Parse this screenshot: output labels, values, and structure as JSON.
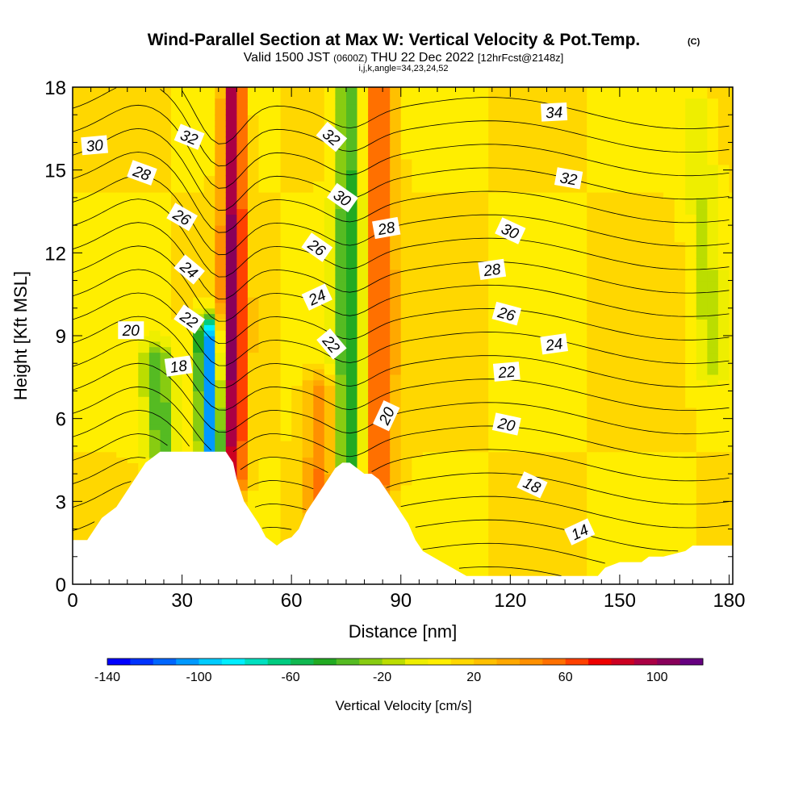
{
  "chart_data": {
    "type": "heatmap",
    "title": "Wind-Parallel Section at Max W: Vertical Velocity & Pot.Temp.",
    "title_mark": "(C)",
    "subtitle": {
      "prefix": "Valid 1500 JST",
      "utc": "(0600Z)",
      "date": "THU 22 Dec 2022",
      "fcst": "[12hrFcst@2148z]"
    },
    "subtitle2": "i,j,k,angle=34,23,24,52",
    "xlabel": "Distance [nm]",
    "ylabel": "Height [Kft MSL]",
    "xlim": [
      0,
      181
    ],
    "ylim": [
      0,
      18
    ],
    "xticks": [
      0,
      30,
      60,
      90,
      120,
      150,
      180
    ],
    "yticks": [
      0,
      3,
      6,
      9,
      12,
      15,
      18
    ],
    "colorbar": {
      "label": "Vertical Velocity [cm/s]",
      "range": [
        -140,
        120
      ],
      "step": 10,
      "ticks": [
        -140,
        -100,
        -60,
        -20,
        20,
        60,
        100
      ],
      "colors": [
        "#0000ff",
        "#0033ff",
        "#0066ff",
        "#0099ff",
        "#00ccff",
        "#00eeff",
        "#00e0c0",
        "#00cc80",
        "#10b850",
        "#22aa22",
        "#55bb22",
        "#88cc11",
        "#bbdd00",
        "#eeee00",
        "#ffee00",
        "#ffd700",
        "#ffc000",
        "#ffa800",
        "#ff9000",
        "#ff7000",
        "#ff4000",
        "#ee0000",
        "#cc0022",
        "#aa0044",
        "#88005a",
        "#660080"
      ]
    },
    "velocity_field": {
      "background_cm_s": 10,
      "features": [
        {
          "x": 44,
          "zmin": 4,
          "zmax": 18,
          "w": 90
        },
        {
          "x": 38,
          "zmin": 4.5,
          "zmax": 9,
          "w": -120
        },
        {
          "x": 76,
          "zmin": 3,
          "zmax": 18,
          "w": -55
        },
        {
          "x": 84,
          "zmin": 4,
          "zmax": 18,
          "w": 55
        },
        {
          "x": 68,
          "zmin": 3,
          "zmax": 7,
          "w": 40
        },
        {
          "x": 175,
          "zmin": 8,
          "zmax": 17,
          "w": -20
        },
        {
          "x": 24,
          "zmin": 5,
          "zmax": 8,
          "w": -45
        }
      ]
    },
    "terrain_kft": [
      [
        0,
        1.6
      ],
      [
        4,
        1.6
      ],
      [
        6,
        2
      ],
      [
        8,
        2.4
      ],
      [
        10,
        2.6
      ],
      [
        12,
        2.8
      ],
      [
        14,
        3.2
      ],
      [
        16,
        3.6
      ],
      [
        18,
        4
      ],
      [
        20,
        4.4
      ],
      [
        22,
        4.6
      ],
      [
        24,
        4.8
      ],
      [
        28,
        4.8
      ],
      [
        34,
        4.8
      ],
      [
        40,
        4.8
      ],
      [
        42,
        4.8
      ],
      [
        44,
        4.4
      ],
      [
        45,
        3.8
      ],
      [
        46,
        3.4
      ],
      [
        47,
        3
      ],
      [
        49,
        2.6
      ],
      [
        51,
        2.2
      ],
      [
        53,
        1.7
      ],
      [
        56,
        1.4
      ],
      [
        58,
        1.6
      ],
      [
        60,
        1.7
      ],
      [
        62,
        2
      ],
      [
        64,
        2.6
      ],
      [
        66,
        3
      ],
      [
        68,
        3.4
      ],
      [
        70,
        3.8
      ],
      [
        72,
        4.2
      ],
      [
        74,
        4.4
      ],
      [
        76,
        4.4
      ],
      [
        78,
        4.2
      ],
      [
        80,
        4
      ],
      [
        82,
        4
      ],
      [
        84,
        3.8
      ],
      [
        86,
        3.4
      ],
      [
        88,
        3
      ],
      [
        90,
        2.6
      ],
      [
        92,
        2.2
      ],
      [
        94,
        1.6
      ],
      [
        96,
        1.2
      ],
      [
        100,
        0.9
      ],
      [
        104,
        0.6
      ],
      [
        108,
        0.3
      ],
      [
        112,
        0.3
      ],
      [
        140,
        0.3
      ],
      [
        144,
        0.3
      ],
      [
        146,
        0.6
      ],
      [
        150,
        0.8
      ],
      [
        156,
        0.8
      ],
      [
        158,
        1
      ],
      [
        162,
        1
      ],
      [
        168,
        1.2
      ],
      [
        170,
        1.4
      ],
      [
        181,
        1.4
      ]
    ],
    "theta_contour_levels": [
      14,
      15,
      16,
      17,
      18,
      19,
      20,
      21,
      22,
      23,
      24,
      25,
      26,
      27,
      28,
      29,
      30,
      31,
      32,
      33,
      34
    ],
    "contour_labels": [
      {
        "text": "34",
        "x": 132,
        "z": 17.1,
        "angle": -3
      },
      {
        "text": "32",
        "x": 32,
        "z": 16.2,
        "angle": 22
      },
      {
        "text": "32",
        "x": 71,
        "z": 16.2,
        "angle": 40
      },
      {
        "text": "32",
        "x": 136,
        "z": 14.7,
        "angle": 10
      },
      {
        "text": "30",
        "x": 6,
        "z": 15.9,
        "angle": -5
      },
      {
        "text": "30",
        "x": 74,
        "z": 14,
        "angle": 35
      },
      {
        "text": "30",
        "x": 120,
        "z": 12.8,
        "angle": 25
      },
      {
        "text": "28",
        "x": 19,
        "z": 14.9,
        "angle": 20
      },
      {
        "text": "28",
        "x": 86,
        "z": 12.9,
        "angle": -10
      },
      {
        "text": "28",
        "x": 115,
        "z": 11.4,
        "angle": -8
      },
      {
        "text": "26",
        "x": 30,
        "z": 13.3,
        "angle": 30
      },
      {
        "text": "26",
        "x": 67,
        "z": 12.2,
        "angle": 35
      },
      {
        "text": "26",
        "x": 119,
        "z": 9.8,
        "angle": 15
      },
      {
        "text": "24",
        "x": 32,
        "z": 11.4,
        "angle": 40
      },
      {
        "text": "24",
        "x": 67,
        "z": 10.4,
        "angle": -25
      },
      {
        "text": "24",
        "x": 132,
        "z": 8.7,
        "angle": -8
      },
      {
        "text": "22",
        "x": 32,
        "z": 9.6,
        "angle": 35
      },
      {
        "text": "22",
        "x": 71,
        "z": 8.7,
        "angle": 50
      },
      {
        "text": "22",
        "x": 119,
        "z": 7.7,
        "angle": -5
      },
      {
        "text": "20",
        "x": 16,
        "z": 9.2,
        "angle": 0
      },
      {
        "text": "20",
        "x": 86,
        "z": 6.1,
        "angle": -65
      },
      {
        "text": "20",
        "x": 119,
        "z": 5.8,
        "angle": 12
      },
      {
        "text": "18",
        "x": 29,
        "z": 7.9,
        "angle": -8
      },
      {
        "text": "18",
        "x": 126,
        "z": 3.6,
        "angle": 25
      },
      {
        "text": "14",
        "x": 139,
        "z": 1.9,
        "angle": -25
      }
    ]
  }
}
